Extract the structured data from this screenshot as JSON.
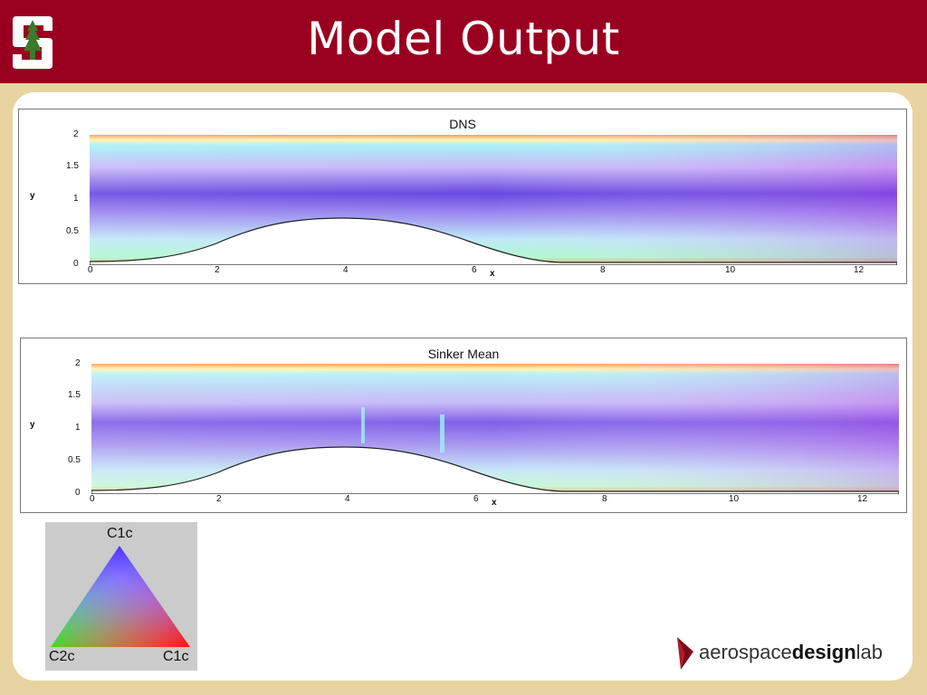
{
  "slide": {
    "title": "Model Output"
  },
  "plots": [
    {
      "title": "DNS",
      "y_label": "y",
      "x_label": "x",
      "y_ticks": [
        "2",
        "1.5",
        "1",
        "0.5",
        "0"
      ],
      "x_ticks": [
        "0",
        "2",
        "4",
        "6",
        "8",
        "10",
        "12"
      ]
    },
    {
      "title": "Sinker Mean",
      "y_label": "y",
      "x_label": "x",
      "y_ticks": [
        "2",
        "1.5",
        "1",
        "0.5",
        "0"
      ],
      "x_ticks": [
        "0",
        "2",
        "4",
        "6",
        "8",
        "10",
        "12"
      ]
    }
  ],
  "legend": {
    "top": "C1c",
    "bottom_left": "C2c",
    "bottom_right": "C1c"
  },
  "branding": {
    "logo_plain_1": "aerospace",
    "logo_bold": "design",
    "logo_plain_2": "lab"
  },
  "colors": {
    "header": "#990020",
    "background": "#e8d4a0",
    "content": "#ffffff"
  },
  "icons": [
    "stanford-tree-logo-icon",
    "aerospace-design-lab-arrow-icon"
  ]
}
